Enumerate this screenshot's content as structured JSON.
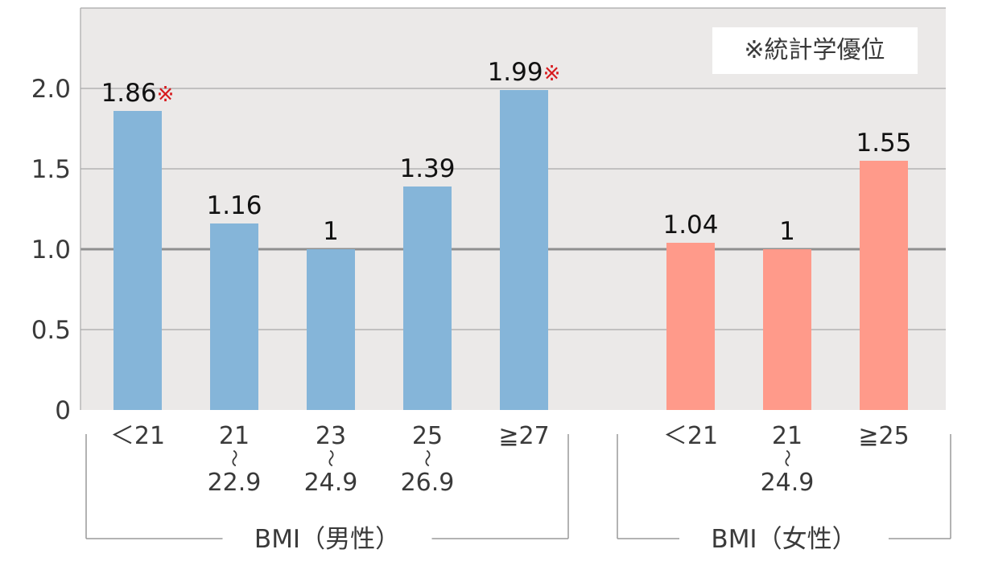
{
  "legend_note": "※統計学優位",
  "colors": {
    "male_bar": "#85b5d9",
    "female_bar": "#ff9a8a",
    "plot_background": "#ebe9e8",
    "grid": "#a8a8a8",
    "reference_line": "#8f8f8f",
    "text": "#3a3a3a",
    "marker": "#d7191c"
  },
  "chart_data": {
    "type": "bar",
    "title": "",
    "xlabel": "",
    "ylabel": "",
    "ylim": [
      0,
      2.5
    ],
    "yticks": [
      "0",
      "0.5",
      "1.0",
      "1.5",
      "2.0"
    ],
    "ytick_values": [
      0,
      0.5,
      1.0,
      1.5,
      2.0
    ],
    "reference_value": 1.0,
    "grid": true,
    "groups": [
      {
        "label": "BMI（男性）",
        "color_key": "male_bar",
        "bars": [
          {
            "category": [
              "＜21"
            ],
            "value": 1.86,
            "label": "1.86",
            "significant": true
          },
          {
            "category": [
              "21",
              "〜",
              "22.9"
            ],
            "value": 1.16,
            "label": "1.16",
            "significant": false
          },
          {
            "category": [
              "23",
              "〜",
              "24.9"
            ],
            "value": 1.0,
            "label": "1",
            "significant": false
          },
          {
            "category": [
              "25",
              "〜",
              "26.9"
            ],
            "value": 1.39,
            "label": "1.39",
            "significant": false
          },
          {
            "category": [
              "≧27"
            ],
            "value": 1.99,
            "label": "1.99",
            "significant": true
          }
        ]
      },
      {
        "label": "BMI（女性）",
        "color_key": "female_bar",
        "bars": [
          {
            "category": [
              "＜21"
            ],
            "value": 1.04,
            "label": "1.04",
            "significant": false
          },
          {
            "category": [
              "21",
              "〜",
              "24.9"
            ],
            "value": 1.0,
            "label": "1",
            "significant": false
          },
          {
            "category": [
              "≧25"
            ],
            "value": 1.55,
            "label": "1.55",
            "significant": false
          }
        ]
      }
    ],
    "significance_marker": "※"
  }
}
